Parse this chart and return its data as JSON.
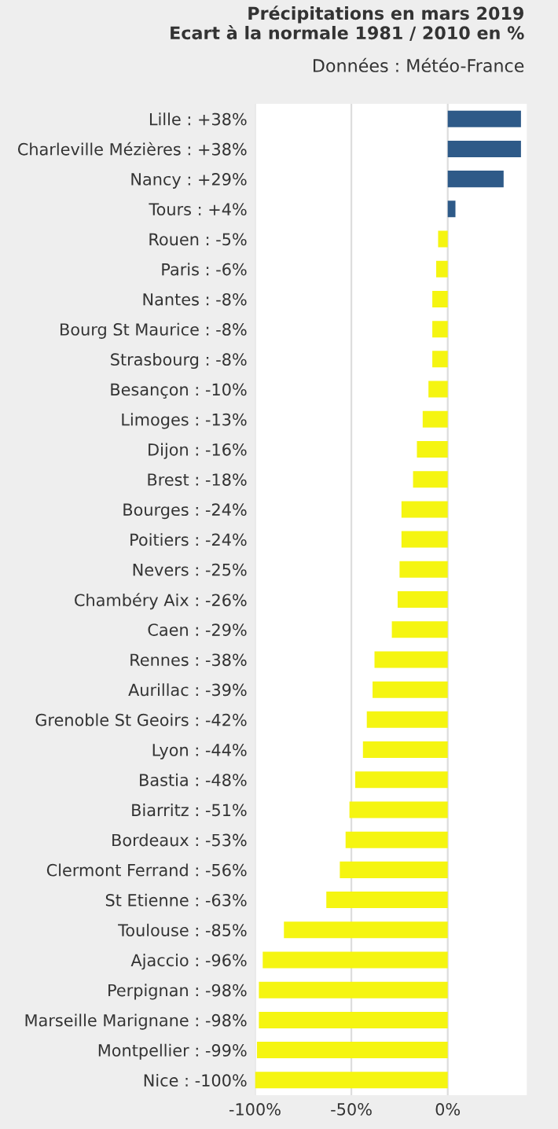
{
  "chart_data": {
    "type": "bar",
    "orientation": "horizontal",
    "title": "Précipitations en mars 2019\nEcart à la normale 1981 / 2010 en %",
    "subtitle": "Données : Météo-France",
    "categories": [
      "Lille : +38%",
      "Charleville Mézières : +38%",
      "Nancy : +29%",
      "Tours : +4%",
      "Rouen : -5%",
      "Paris : -6%",
      "Nantes : -8%",
      "Bourg St Maurice : -8%",
      "Strasbourg : -8%",
      "Besançon : -10%",
      "Limoges : -13%",
      "Dijon : -16%",
      "Brest : -18%",
      "Bourges : -24%",
      "Poitiers : -24%",
      "Nevers : -25%",
      "Chambéry Aix : -26%",
      "Caen : -29%",
      "Rennes : -38%",
      "Aurillac : -39%",
      "Grenoble St Geoirs : -42%",
      "Lyon : -44%",
      "Bastia : -48%",
      "Biarritz : -51%",
      "Bordeaux : -53%",
      "Clermont Ferrand : -56%",
      "St Etienne : -63%",
      "Toulouse : -85%",
      "Ajaccio : -96%",
      "Perpignan : -98%",
      "Marseille Marignane : -98%",
      "Montpellier : -99%",
      "Nice : -100%"
    ],
    "values": [
      38,
      38,
      29,
      4,
      -5,
      -6,
      -8,
      -8,
      -8,
      -10,
      -13,
      -16,
      -18,
      -24,
      -24,
      -25,
      -26,
      -29,
      -38,
      -39,
      -42,
      -44,
      -48,
      -51,
      -53,
      -56,
      -63,
      -85,
      -96,
      -98,
      -98,
      -99,
      -100
    ],
    "colors": [
      "#2e5a88",
      "#2e5a88",
      "#2e5a88",
      "#2e5a88",
      "#f5f511",
      "#f5f511",
      "#f5f511",
      "#f5f511",
      "#f5f511",
      "#f5f511",
      "#f5f511",
      "#f5f511",
      "#f5f511",
      "#f5f511",
      "#f5f511",
      "#f5f511",
      "#f5f511",
      "#f5f511",
      "#f5f511",
      "#f5f511",
      "#f5f511",
      "#f5f511",
      "#f5f511",
      "#f5f511",
      "#f5f511",
      "#f5f511",
      "#f5f511",
      "#f5f511",
      "#f5f511",
      "#f5f511",
      "#f5f511",
      "#f5f511",
      "#f5f511"
    ],
    "xlim": [
      -100,
      41
    ],
    "xticks": [
      {
        "value": -100,
        "label": "-100%"
      },
      {
        "value": -50,
        "label": "-50%"
      },
      {
        "value": 0,
        "label": "0%"
      }
    ],
    "grid": "x",
    "legend": false
  }
}
